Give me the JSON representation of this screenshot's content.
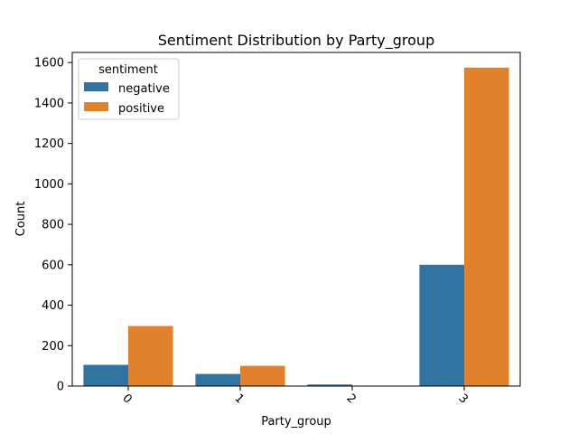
{
  "chart_data": {
    "type": "bar",
    "title": "Sentiment Distribution by Party_group",
    "xlabel": "Party_group",
    "ylabel": "Count",
    "categories": [
      "0",
      "1",
      "2",
      "3"
    ],
    "series": [
      {
        "name": "negative",
        "color": "#3274a1",
        "values": [
          105,
          60,
          8,
          600
        ]
      },
      {
        "name": "positive",
        "color": "#e1812c",
        "values": [
          297,
          100,
          2,
          1575
        ]
      }
    ],
    "ylim": [
      0,
      1650
    ],
    "yticks": [
      0,
      200,
      400,
      600,
      800,
      1000,
      1200,
      1400,
      1600
    ],
    "legend": {
      "title": "sentiment",
      "placement": "top-left"
    },
    "grid": false,
    "xtick_rotation": 45
  }
}
